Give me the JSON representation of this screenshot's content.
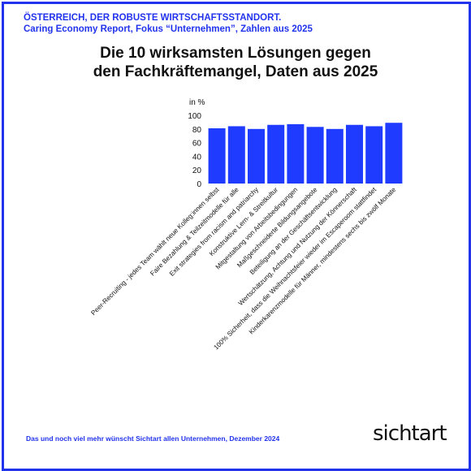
{
  "header": {
    "line1": "ÖSTERREICH, DER ROBUSTE WIRTSCHAFTSSTANDORT.",
    "line2": "Caring Economy Report, Fokus “Unternehmen”, Zahlen aus 2025"
  },
  "title": {
    "line1": "Die 10 wirksamsten Lösungen gegen",
    "line2": "den Fachkräftemangel, Daten aus 2025"
  },
  "footer": {
    "text": "Das und noch viel mehr wünscht Sichtart allen Unternehmen, Dezember 2024",
    "logo": "sichtart"
  },
  "colors": {
    "accent": "#2233ee",
    "bar": "#1f3bff",
    "frame": "#2233ee"
  },
  "chart_data": {
    "type": "bar",
    "ylabel": "in %",
    "ylim": [
      0,
      100
    ],
    "yticks": [
      0,
      20,
      40,
      60,
      80,
      100
    ],
    "grid": false,
    "categories": [
      "Peer-Recruiting - jedes Team wählt neue Kolleg:innen selbst",
      "Faire Bezahlung & Teilzeitmodelle für alle",
      "Exit strategies from racism and patriarchy",
      "Konstruktive Lern- & Streitkultur",
      "Mitgestaltung von Arbeitsbedingungen",
      "Maßgeschneiderte Bildungsangebote",
      "Beteiligung an der Geschäftsentwicklung",
      "Wertschätzung, Achtung und Nutzung der Könnerschaft",
      "100% Sicherheit, dass die Weihnachtsfeier wieder im Escaperoom stattfindet",
      "Kinderkarenzmodelle für Männer, mindestens sechs bis zwölf Monate"
    ],
    "values": [
      81,
      84,
      80,
      86,
      87,
      83,
      80,
      86,
      84,
      89
    ]
  }
}
